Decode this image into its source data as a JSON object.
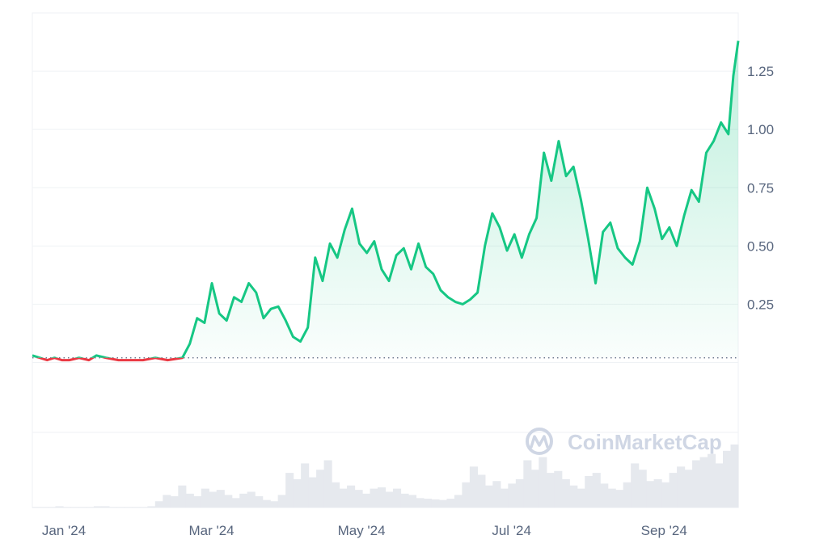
{
  "watermark": "CoinMarketCap",
  "chart_data": {
    "type": "area",
    "x_tick_labels": [
      "Jan '24",
      "Mar '24",
      "May '24",
      "Jul '24",
      "Sep '24"
    ],
    "x_tick_dates": [
      "2024-01-01",
      "2024-03-01",
      "2024-05-01",
      "2024-07-01",
      "2024-09-01"
    ],
    "x_range": [
      "2023-12-31",
      "2024-10-13"
    ],
    "y_tick_labels": [
      "0.25",
      "0.50",
      "0.75",
      "1.00",
      "1.25"
    ],
    "y_ticks": [
      0.25,
      0.5,
      0.75,
      1.0,
      1.25
    ],
    "ylim": [
      -0.3,
      1.5
    ],
    "baseline_value": 0.02,
    "colors": {
      "up": "#16c784",
      "down": "#ea3943",
      "grid": "#eff2f5",
      "baseline": "#58667e",
      "volume": "#e6e9ee"
    },
    "grid": true,
    "series": [
      {
        "x": [
          "2023-12-31",
          "2024-01-03",
          "2024-01-06",
          "2024-01-09",
          "2024-01-12",
          "2024-01-15",
          "2024-01-19",
          "2024-01-23",
          "2024-01-26",
          "2024-01-30",
          "2024-02-04",
          "2024-02-09",
          "2024-02-14",
          "2024-02-19",
          "2024-02-24",
          "2024-03-01",
          "2024-03-04",
          "2024-03-07",
          "2024-03-10",
          "2024-03-13",
          "2024-03-16",
          "2024-03-19",
          "2024-03-22",
          "2024-03-25",
          "2024-03-28",
          "2024-03-31",
          "2024-04-03",
          "2024-04-06",
          "2024-04-09",
          "2024-04-12",
          "2024-04-15",
          "2024-04-18",
          "2024-04-21",
          "2024-04-24",
          "2024-04-27",
          "2024-04-30",
          "2024-05-03",
          "2024-05-06",
          "2024-05-09",
          "2024-05-12",
          "2024-05-15",
          "2024-05-18",
          "2024-05-21",
          "2024-05-24",
          "2024-05-27",
          "2024-05-30",
          "2024-06-02",
          "2024-06-05",
          "2024-06-08",
          "2024-06-11",
          "2024-06-14",
          "2024-06-17",
          "2024-06-20",
          "2024-06-23",
          "2024-06-26",
          "2024-06-29",
          "2024-07-02",
          "2024-07-05",
          "2024-07-08",
          "2024-07-11",
          "2024-07-14",
          "2024-07-17",
          "2024-07-20",
          "2024-07-23",
          "2024-07-26",
          "2024-07-29",
          "2024-08-01",
          "2024-08-04",
          "2024-08-07",
          "2024-08-10",
          "2024-08-13",
          "2024-08-16",
          "2024-08-19",
          "2024-08-22",
          "2024-08-25",
          "2024-08-28",
          "2024-08-31",
          "2024-09-03",
          "2024-09-06",
          "2024-09-09",
          "2024-09-12",
          "2024-09-15",
          "2024-09-18",
          "2024-09-21",
          "2024-09-24",
          "2024-09-27",
          "2024-09-30",
          "2024-10-03",
          "2024-10-06",
          "2024-10-09",
          "2024-10-11",
          "2024-10-13"
        ],
        "y": [
          0.03,
          0.02,
          0.01,
          0.02,
          0.01,
          0.01,
          0.02,
          0.01,
          0.03,
          0.02,
          0.01,
          0.01,
          0.01,
          0.02,
          0.01,
          0.02,
          0.08,
          0.19,
          0.17,
          0.34,
          0.21,
          0.18,
          0.28,
          0.26,
          0.34,
          0.3,
          0.19,
          0.23,
          0.24,
          0.18,
          0.11,
          0.09,
          0.15,
          0.45,
          0.35,
          0.51,
          0.45,
          0.57,
          0.66,
          0.51,
          0.47,
          0.52,
          0.4,
          0.35,
          0.46,
          0.49,
          0.4,
          0.51,
          0.41,
          0.38,
          0.31,
          0.28,
          0.26,
          0.25,
          0.27,
          0.3,
          0.5,
          0.64,
          0.58,
          0.48,
          0.55,
          0.45,
          0.55,
          0.62,
          0.9,
          0.78,
          0.95,
          0.8,
          0.84,
          0.7,
          0.53,
          0.34,
          0.56,
          0.6,
          0.49,
          0.45,
          0.42,
          0.52,
          0.75,
          0.66,
          0.53,
          0.58,
          0.5,
          0.63,
          0.74,
          0.69,
          0.9,
          0.95,
          1.03,
          0.98,
          1.23,
          1.38
        ]
      }
    ],
    "volume": [
      0.01,
      0.01,
      0.01,
      0.02,
      0.01,
      0.01,
      0.01,
      0.01,
      0.02,
      0.02,
      0.01,
      0.01,
      0.01,
      0.01,
      0.01,
      0.02,
      0.1,
      0.2,
      0.18,
      0.35,
      0.22,
      0.18,
      0.3,
      0.25,
      0.28,
      0.2,
      0.15,
      0.22,
      0.25,
      0.18,
      0.12,
      0.1,
      0.2,
      0.55,
      0.45,
      0.7,
      0.48,
      0.6,
      0.75,
      0.4,
      0.3,
      0.35,
      0.28,
      0.22,
      0.3,
      0.32,
      0.25,
      0.3,
      0.22,
      0.2,
      0.15,
      0.14,
      0.13,
      0.12,
      0.14,
      0.2,
      0.4,
      0.65,
      0.52,
      0.35,
      0.42,
      0.3,
      0.38,
      0.45,
      0.75,
      0.6,
      0.8,
      0.55,
      0.58,
      0.45,
      0.35,
      0.3,
      0.5,
      0.55,
      0.38,
      0.3,
      0.28,
      0.4,
      0.7,
      0.6,
      0.42,
      0.45,
      0.4,
      0.55,
      0.65,
      0.6,
      0.75,
      0.8,
      0.85,
      0.7,
      0.9,
      1.0
    ]
  }
}
